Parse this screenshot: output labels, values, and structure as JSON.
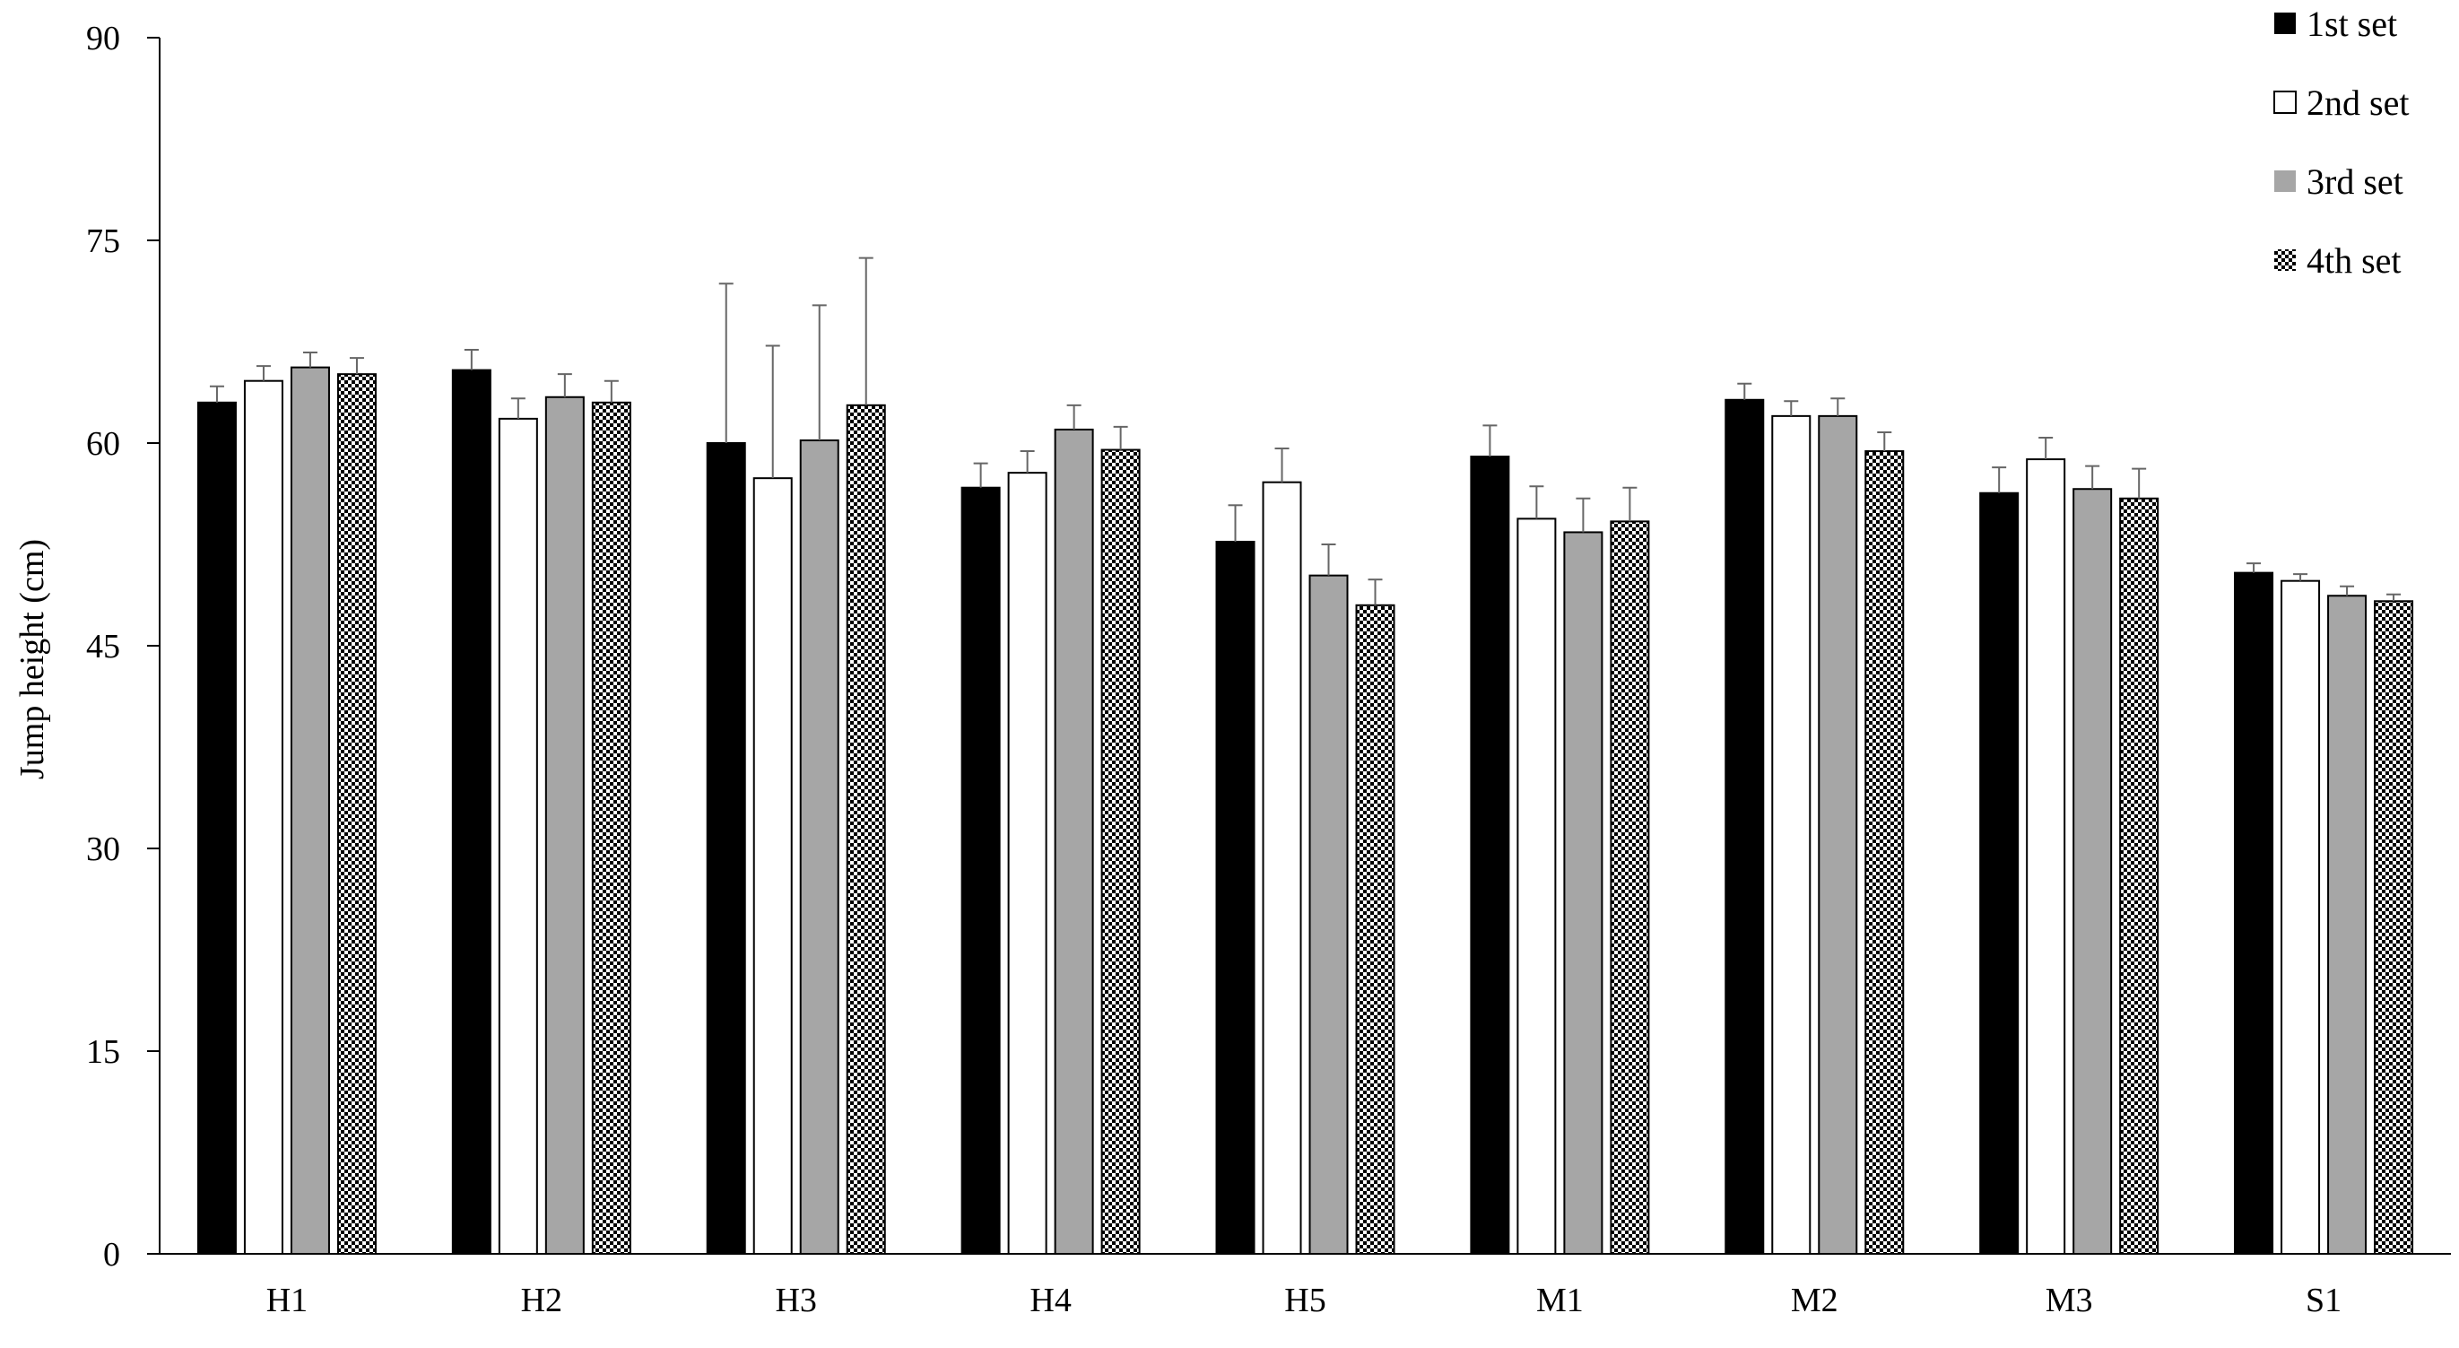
{
  "chart_data": {
    "type": "bar",
    "title": "",
    "xlabel": "",
    "ylabel": "Jump height (cm)",
    "ylim": [
      0,
      90
    ],
    "yticks": [
      "0",
      "15",
      "30",
      "45",
      "60",
      "75",
      "90"
    ],
    "grid": false,
    "legend_position": "top-right",
    "categories": [
      "H1",
      "H2",
      "H3",
      "H4",
      "H5",
      "M1",
      "M2",
      "M3",
      "S1"
    ],
    "series": [
      {
        "name": "1st set",
        "style": "solid-black",
        "color": "#000000",
        "values": [
          63.0,
          65.4,
          60.0,
          56.7,
          52.7,
          59.0,
          63.2,
          56.3,
          50.4
        ],
        "errors": [
          1.2,
          1.5,
          11.8,
          1.8,
          2.7,
          2.3,
          1.2,
          1.9,
          0.7
        ]
      },
      {
        "name": "2nd set",
        "style": "white",
        "color": "#ffffff",
        "values": [
          64.6,
          61.8,
          57.4,
          57.8,
          57.1,
          54.4,
          62.0,
          58.8,
          49.8
        ],
        "errors": [
          1.1,
          1.5,
          9.8,
          1.6,
          2.5,
          2.4,
          1.1,
          1.6,
          0.5
        ]
      },
      {
        "name": "3rd set",
        "style": "solid-gray",
        "color": "#a6a6a6",
        "values": [
          65.6,
          63.4,
          60.2,
          61.0,
          50.2,
          53.4,
          62.0,
          56.6,
          48.7
        ],
        "errors": [
          1.1,
          1.7,
          10.0,
          1.8,
          2.3,
          2.5,
          1.3,
          1.7,
          0.7
        ]
      },
      {
        "name": "4th set",
        "style": "checkered",
        "color": "#000000",
        "values": [
          65.1,
          63.0,
          62.8,
          59.5,
          48.0,
          54.2,
          59.4,
          55.9,
          48.3
        ],
        "errors": [
          1.2,
          1.6,
          10.9,
          1.7,
          1.9,
          2.5,
          1.4,
          2.2,
          0.5
        ]
      }
    ]
  }
}
